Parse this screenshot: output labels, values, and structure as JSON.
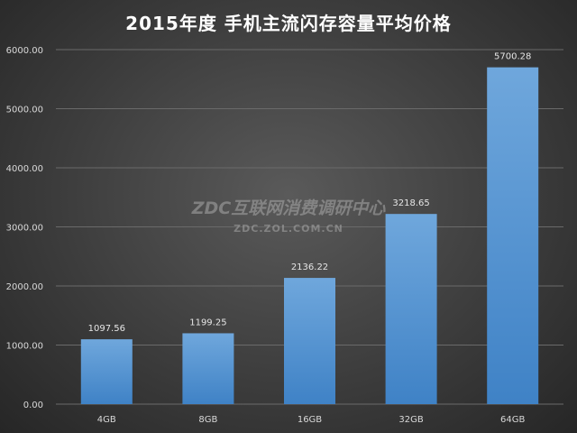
{
  "chart_data": {
    "type": "bar",
    "title": "2015年度 手机主流闪存容量平均价格",
    "categories": [
      "4GB",
      "8GB",
      "16GB",
      "32GB",
      "64GB"
    ],
    "values": [
      1097.56,
      1199.25,
      2136.22,
      3218.65,
      5700.28
    ],
    "data_labels": [
      "1097.56",
      "1199.25",
      "2136.22",
      "3218.65",
      "5700.28"
    ],
    "y_ticks": [
      0,
      1000,
      2000,
      3000,
      4000,
      5000,
      6000
    ],
    "y_tick_labels": [
      "0.00",
      "1000.00",
      "2000.00",
      "3000.00",
      "4000.00",
      "5000.00",
      "6000.00"
    ],
    "ylim": [
      0,
      6000
    ],
    "grid": true,
    "legend": "none",
    "xlabel": "",
    "ylabel": "",
    "colors": {
      "bar": "#5b9bd5",
      "bar_light": "#6fa7dc",
      "bar_dark": "#3f82c6",
      "gridline": "#6a6a6a",
      "background": "#3d3d3d",
      "text": "#d9d9d9"
    }
  },
  "watermark": {
    "text": "ZDC互联网消费调研中心",
    "url": "ZDC.ZOL.COM.CN"
  }
}
